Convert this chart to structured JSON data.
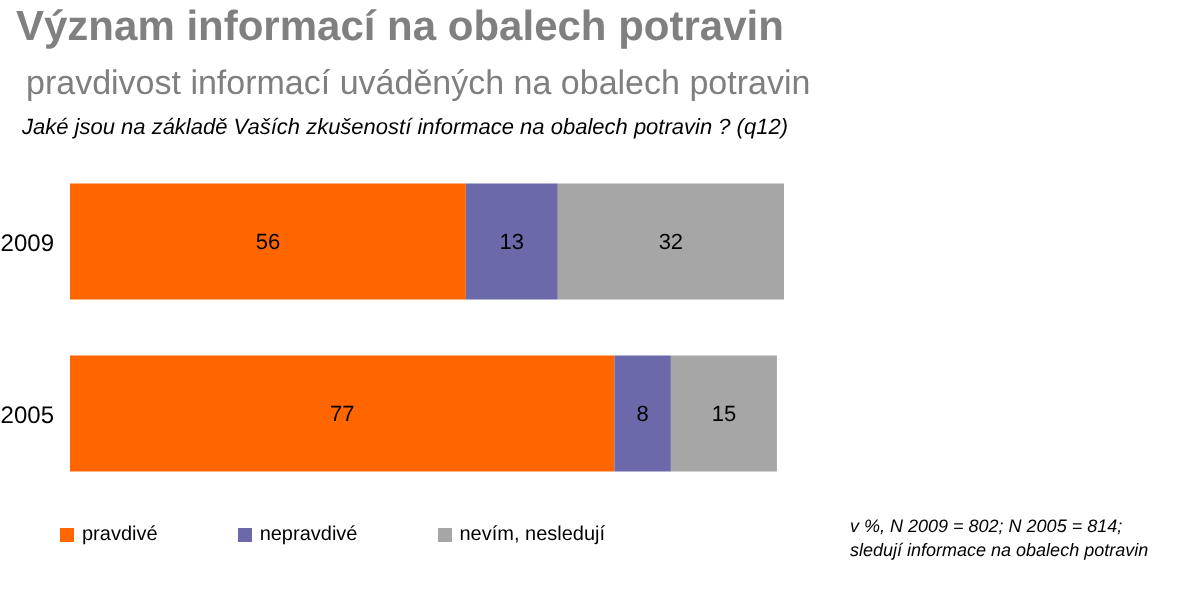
{
  "chart_data": {
    "type": "bar",
    "orientation": "horizontal",
    "stacked": true,
    "title": "Význam informací na obalech potravin",
    "subtitle": "pravdivost informací uváděných na obalech potravin",
    "categories": [
      "2009",
      "2005"
    ],
    "series": [
      {
        "name": "pravdivé",
        "color": "#ff6600",
        "values": [
          56,
          77
        ]
      },
      {
        "name": "nepravdivé",
        "color": "#6b69aa",
        "values": [
          13,
          8
        ]
      },
      {
        "name": "nevím, nesledují",
        "color": "#a6a6a6",
        "values": [
          32,
          15
        ]
      }
    ],
    "data_labels": true,
    "legend": "bottom left",
    "grid": false,
    "annotations": [
      "Jaké jsou na základě Vaších zkušeností informace na obalech potravin ? (q12)",
      "v %,  N 2009 = 802; N 2005 = 814; sledují informace na obalech potravin"
    ]
  }
}
